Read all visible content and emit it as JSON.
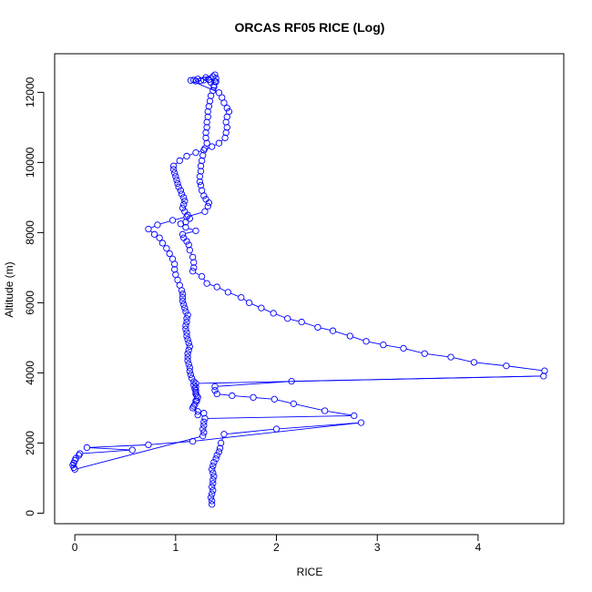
{
  "chart_data": {
    "type": "line",
    "title": "ORCAS RF05 RICE (Log)",
    "xlabel": "RICE",
    "ylabel": "Altitude (m)",
    "xlim": [
      -0.2,
      4.85
    ],
    "ylim": [
      -300,
      13100
    ],
    "xticks": [
      0,
      1,
      2,
      3,
      4
    ],
    "yticks": [
      0,
      2000,
      4000,
      6000,
      8000,
      10000,
      12000
    ],
    "grid": false,
    "marker": "open-circle",
    "series_color": "#0000ff",
    "series": [
      {
        "points": [
          [
            1.36,
            250
          ],
          [
            1.36,
            350
          ],
          [
            1.35,
            450
          ],
          [
            1.36,
            550
          ],
          [
            1.37,
            650
          ],
          [
            1.36,
            750
          ],
          [
            1.37,
            850
          ],
          [
            1.37,
            950
          ],
          [
            1.38,
            1050
          ],
          [
            1.37,
            1150
          ],
          [
            1.36,
            1250
          ],
          [
            1.37,
            1350
          ],
          [
            1.38,
            1450
          ],
          [
            1.4,
            1550
          ],
          [
            1.41,
            1650
          ],
          [
            1.43,
            1750
          ],
          [
            1.44,
            1850
          ],
          [
            1.45,
            2000
          ],
          [
            1.48,
            2250
          ],
          [
            2.0,
            2400
          ],
          [
            2.84,
            2580
          ],
          [
            1.17,
            2050
          ],
          [
            0.73,
            1950
          ],
          [
            0.12,
            1870
          ],
          [
            0.57,
            1800
          ],
          [
            0.05,
            1700
          ],
          [
            0.04,
            1650
          ],
          [
            0.01,
            1560
          ],
          [
            0.0,
            1500
          ],
          [
            -0.01,
            1430
          ],
          [
            -0.02,
            1370
          ],
          [
            -0.01,
            1300
          ],
          [
            0.0,
            1250
          ],
          [
            1.27,
            2200
          ],
          [
            1.28,
            2300
          ],
          [
            1.27,
            2400
          ],
          [
            1.28,
            2500
          ],
          [
            1.28,
            2600
          ],
          [
            1.29,
            2700
          ],
          [
            2.77,
            2780
          ],
          [
            2.48,
            2920
          ],
          [
            2.17,
            3120
          ],
          [
            1.98,
            3250
          ],
          [
            1.77,
            3300
          ],
          [
            1.56,
            3350
          ],
          [
            1.41,
            3400
          ],
          [
            1.39,
            3500
          ],
          [
            1.39,
            3610
          ],
          [
            2.15,
            3760
          ],
          [
            4.65,
            3910
          ],
          [
            1.2,
            3700
          ],
          [
            1.2,
            3600
          ],
          [
            1.2,
            3500
          ],
          [
            1.2,
            3400
          ],
          [
            1.22,
            3300
          ],
          [
            1.21,
            3200
          ],
          [
            1.19,
            3100
          ],
          [
            1.17,
            3000
          ],
          [
            1.22,
            2900
          ],
          [
            1.28,
            2850
          ],
          [
            1.22,
            2800
          ],
          [
            1.18,
            3050
          ],
          [
            1.2,
            3200
          ],
          [
            1.21,
            3350
          ],
          [
            1.2,
            3450
          ],
          [
            1.19,
            3550
          ],
          [
            1.18,
            3650
          ],
          [
            1.18,
            3750
          ],
          [
            1.16,
            3850
          ],
          [
            1.15,
            3950
          ],
          [
            1.14,
            4050
          ],
          [
            1.14,
            4150
          ],
          [
            1.13,
            4250
          ],
          [
            1.12,
            4350
          ],
          [
            1.12,
            4450
          ],
          [
            1.12,
            4550
          ],
          [
            1.13,
            4650
          ],
          [
            1.14,
            4750
          ],
          [
            1.13,
            4850
          ],
          [
            1.12,
            4950
          ],
          [
            1.11,
            5050
          ],
          [
            1.11,
            5150
          ],
          [
            1.1,
            5250
          ],
          [
            1.1,
            5350
          ],
          [
            1.11,
            5450
          ],
          [
            1.11,
            5550
          ],
          [
            1.12,
            5650
          ],
          [
            1.1,
            5750
          ],
          [
            1.09,
            5850
          ],
          [
            1.08,
            5950
          ],
          [
            1.07,
            6050
          ],
          [
            1.07,
            6150
          ],
          [
            1.07,
            6250
          ],
          [
            1.06,
            6350
          ],
          [
            1.04,
            6500
          ],
          [
            1.02,
            6650
          ],
          [
            1.0,
            6800
          ],
          [
            0.99,
            6950
          ],
          [
            0.99,
            7100
          ],
          [
            0.97,
            7250
          ],
          [
            0.94,
            7400
          ],
          [
            0.91,
            7550
          ],
          [
            0.87,
            7700
          ],
          [
            0.84,
            7850
          ],
          [
            0.79,
            7950
          ],
          [
            0.73,
            8100
          ],
          [
            0.82,
            8220
          ],
          [
            0.97,
            8350
          ],
          [
            1.11,
            8450
          ],
          [
            1.29,
            8600
          ],
          [
            1.32,
            8750
          ],
          [
            1.33,
            8850
          ],
          [
            1.3,
            8950
          ],
          [
            1.28,
            9050
          ],
          [
            1.26,
            9200
          ],
          [
            1.25,
            9350
          ],
          [
            1.24,
            9450
          ],
          [
            1.24,
            9600
          ],
          [
            1.25,
            9750
          ],
          [
            1.25,
            9900
          ],
          [
            1.26,
            10050
          ],
          [
            1.27,
            10200
          ],
          [
            1.29,
            10400
          ],
          [
            1.31,
            10550
          ],
          [
            1.3,
            10700
          ],
          [
            1.3,
            10850
          ],
          [
            1.31,
            11000
          ],
          [
            1.31,
            11150
          ],
          [
            1.32,
            11300
          ],
          [
            1.32,
            11450
          ],
          [
            1.33,
            11600
          ],
          [
            1.34,
            11750
          ],
          [
            1.35,
            11900
          ],
          [
            1.37,
            12050
          ],
          [
            1.38,
            12150
          ],
          [
            1.38,
            12200
          ],
          [
            1.39,
            12300
          ],
          [
            1.4,
            12400
          ],
          [
            1.39,
            12500
          ],
          [
            1.18,
            12350
          ],
          [
            1.22,
            12380
          ],
          [
            1.3,
            12420
          ],
          [
            1.37,
            12450
          ],
          [
            1.25,
            12330
          ],
          [
            1.33,
            12360
          ],
          [
            1.4,
            12300
          ],
          [
            1.35,
            12280
          ],
          [
            1.28,
            12350
          ],
          [
            1.2,
            12320
          ],
          [
            1.15,
            12340
          ],
          [
            1.43,
            11990
          ],
          [
            1.46,
            11850
          ],
          [
            1.48,
            11700
          ],
          [
            1.51,
            11550
          ],
          [
            1.53,
            11450
          ],
          [
            1.51,
            11300
          ],
          [
            1.5,
            11150
          ],
          [
            1.51,
            11000
          ],
          [
            1.5,
            10850
          ],
          [
            1.49,
            10700
          ],
          [
            1.43,
            10550
          ],
          [
            1.36,
            10450
          ],
          [
            1.28,
            10350
          ],
          [
            1.2,
            10280
          ],
          [
            1.11,
            10180
          ],
          [
            1.04,
            10050
          ],
          [
            0.98,
            9900
          ],
          [
            0.98,
            9800
          ],
          [
            0.99,
            9700
          ],
          [
            1.0,
            9600
          ],
          [
            1.01,
            9500
          ],
          [
            1.02,
            9400
          ],
          [
            1.03,
            9300
          ],
          [
            1.05,
            9200
          ],
          [
            1.06,
            9100
          ],
          [
            1.08,
            9000
          ],
          [
            1.09,
            8900
          ],
          [
            1.08,
            8800
          ],
          [
            1.07,
            8700
          ],
          [
            1.09,
            8600
          ],
          [
            1.12,
            8500
          ],
          [
            1.14,
            8400
          ],
          [
            1.1,
            8300
          ],
          [
            1.05,
            8250
          ],
          [
            1.1,
            8150
          ],
          [
            1.2,
            8050
          ],
          [
            1.07,
            7950
          ],
          [
            1.08,
            7850
          ],
          [
            1.11,
            7750
          ],
          [
            1.13,
            7650
          ],
          [
            1.14,
            7500
          ],
          [
            1.17,
            7300
          ],
          [
            1.18,
            7150
          ],
          [
            1.18,
            7000
          ],
          [
            1.17,
            6900
          ],
          [
            1.26,
            6750
          ],
          [
            1.31,
            6550
          ],
          [
            1.41,
            6450
          ],
          [
            1.52,
            6300
          ],
          [
            1.65,
            6150
          ],
          [
            1.73,
            6000
          ],
          [
            1.85,
            5850
          ],
          [
            1.97,
            5700
          ],
          [
            2.11,
            5550
          ],
          [
            2.25,
            5450
          ],
          [
            2.41,
            5300
          ],
          [
            2.56,
            5200
          ],
          [
            2.73,
            5050
          ],
          [
            2.89,
            4900
          ],
          [
            3.06,
            4800
          ],
          [
            3.26,
            4700
          ],
          [
            3.47,
            4550
          ],
          [
            3.73,
            4450
          ],
          [
            3.96,
            4300
          ],
          [
            4.28,
            4200
          ],
          [
            4.66,
            4060
          ]
        ]
      }
    ]
  }
}
